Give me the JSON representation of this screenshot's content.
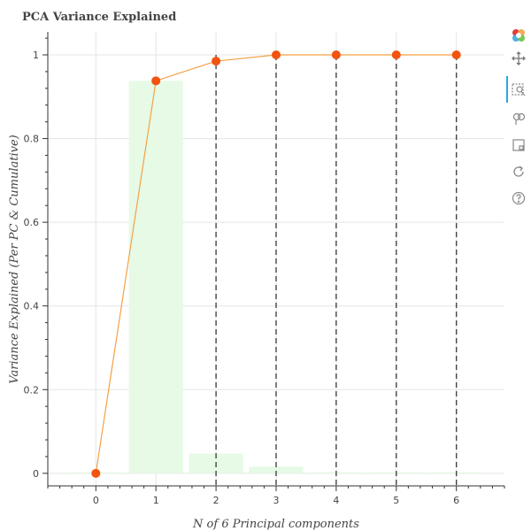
{
  "chart_data": {
    "type": "bar",
    "title": "PCA Variance Explained",
    "xlabel": "N of 6 Principal components",
    "ylabel": "Variance Explained (Per PC & Cumulative)",
    "xlim": [
      -0.8,
      6.8
    ],
    "ylim": [
      -0.03,
      1.055
    ],
    "x_ticks": [
      0,
      1,
      2,
      3,
      4,
      5,
      6
    ],
    "y_ticks": [
      0,
      0.2,
      0.4,
      0.6,
      0.8,
      1
    ],
    "grid": true,
    "bar_color": "#e6fae6",
    "line_color": "#f5a045",
    "marker_color": "#f2530f",
    "vline_color": "#444444",
    "series": [
      {
        "type": "bar",
        "x": [
          0,
          1,
          2,
          3,
          4,
          5,
          6
        ],
        "values": [
          0,
          0.938,
          0.047,
          0.016,
          0.0005,
          0.0001,
          0
        ]
      },
      {
        "type": "line",
        "x": [
          0,
          1,
          2,
          3,
          4,
          5,
          6
        ],
        "values": [
          0,
          0.938,
          0.985,
          1.0,
          1.0,
          1.0,
          1.0
        ]
      }
    ],
    "vlines": [
      2,
      3,
      4,
      5,
      6
    ]
  },
  "toolbar": {
    "tools": [
      "bokeh-logo-icon",
      "pan-icon",
      "box-zoom-icon",
      "wheel-zoom-icon",
      "save-icon",
      "reset-icon",
      "help-icon"
    ]
  }
}
